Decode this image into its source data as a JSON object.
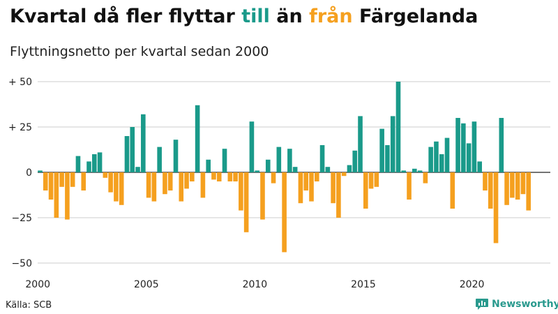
{
  "title_parts": {
    "p1": "Kvartal då fler flyttar ",
    "till": "till",
    "p2": " än ",
    "fran": "från",
    "p3": " Färgelanda"
  },
  "subtitle": "Flyttningsnetto per kvartal sedan 2000",
  "source": "Källa: SCB",
  "brand": "Newsworthy",
  "colors": {
    "positive": "#1a9a8a",
    "negative": "#f5a01f",
    "grid": "#cccccc",
    "zero_line": "#222222",
    "brand": "#2a9a8e"
  },
  "chart_data": {
    "type": "bar",
    "title": "Kvartal då fler flyttar till än från Färgelanda",
    "subtitle": "Flyttningsnetto per kvartal sedan 2000",
    "xlabel": "",
    "ylabel": "",
    "ylim": [
      -50,
      50
    ],
    "y_ticks": [
      50,
      25,
      0,
      -25,
      -50
    ],
    "y_tick_labels": [
      "+ 50",
      "+ 25",
      "0",
      "−25",
      "−50"
    ],
    "x_tick_labels": [
      "2000",
      "2005",
      "2010",
      "2015",
      "2020"
    ],
    "x_tick_quarter_index": [
      0,
      20,
      40,
      60,
      80
    ],
    "start": "2000 Q1",
    "values": [
      1,
      -10,
      -15,
      -25,
      -8,
      -26,
      -8,
      9,
      -10,
      6,
      10,
      11,
      -3,
      -11,
      -16,
      -18,
      20,
      25,
      3,
      32,
      -14,
      -16,
      14,
      -12,
      -10,
      18,
      -16,
      -9,
      -5,
      37,
      -14,
      7,
      -4,
      -5,
      13,
      -5,
      -5,
      -21,
      -33,
      28,
      1,
      -26,
      7,
      -6,
      14,
      -44,
      13,
      3,
      -17,
      -10,
      -16,
      -5,
      15,
      3,
      -17,
      -25,
      -2,
      4,
      12,
      31,
      -20,
      -9,
      -8,
      24,
      15,
      31,
      50,
      1,
      -15,
      2,
      1,
      -6,
      14,
      17,
      10,
      19,
      -20,
      30,
      27,
      16,
      28,
      6,
      -10,
      -20,
      -39,
      30,
      -18,
      -14,
      -15,
      -12,
      -21
    ]
  }
}
